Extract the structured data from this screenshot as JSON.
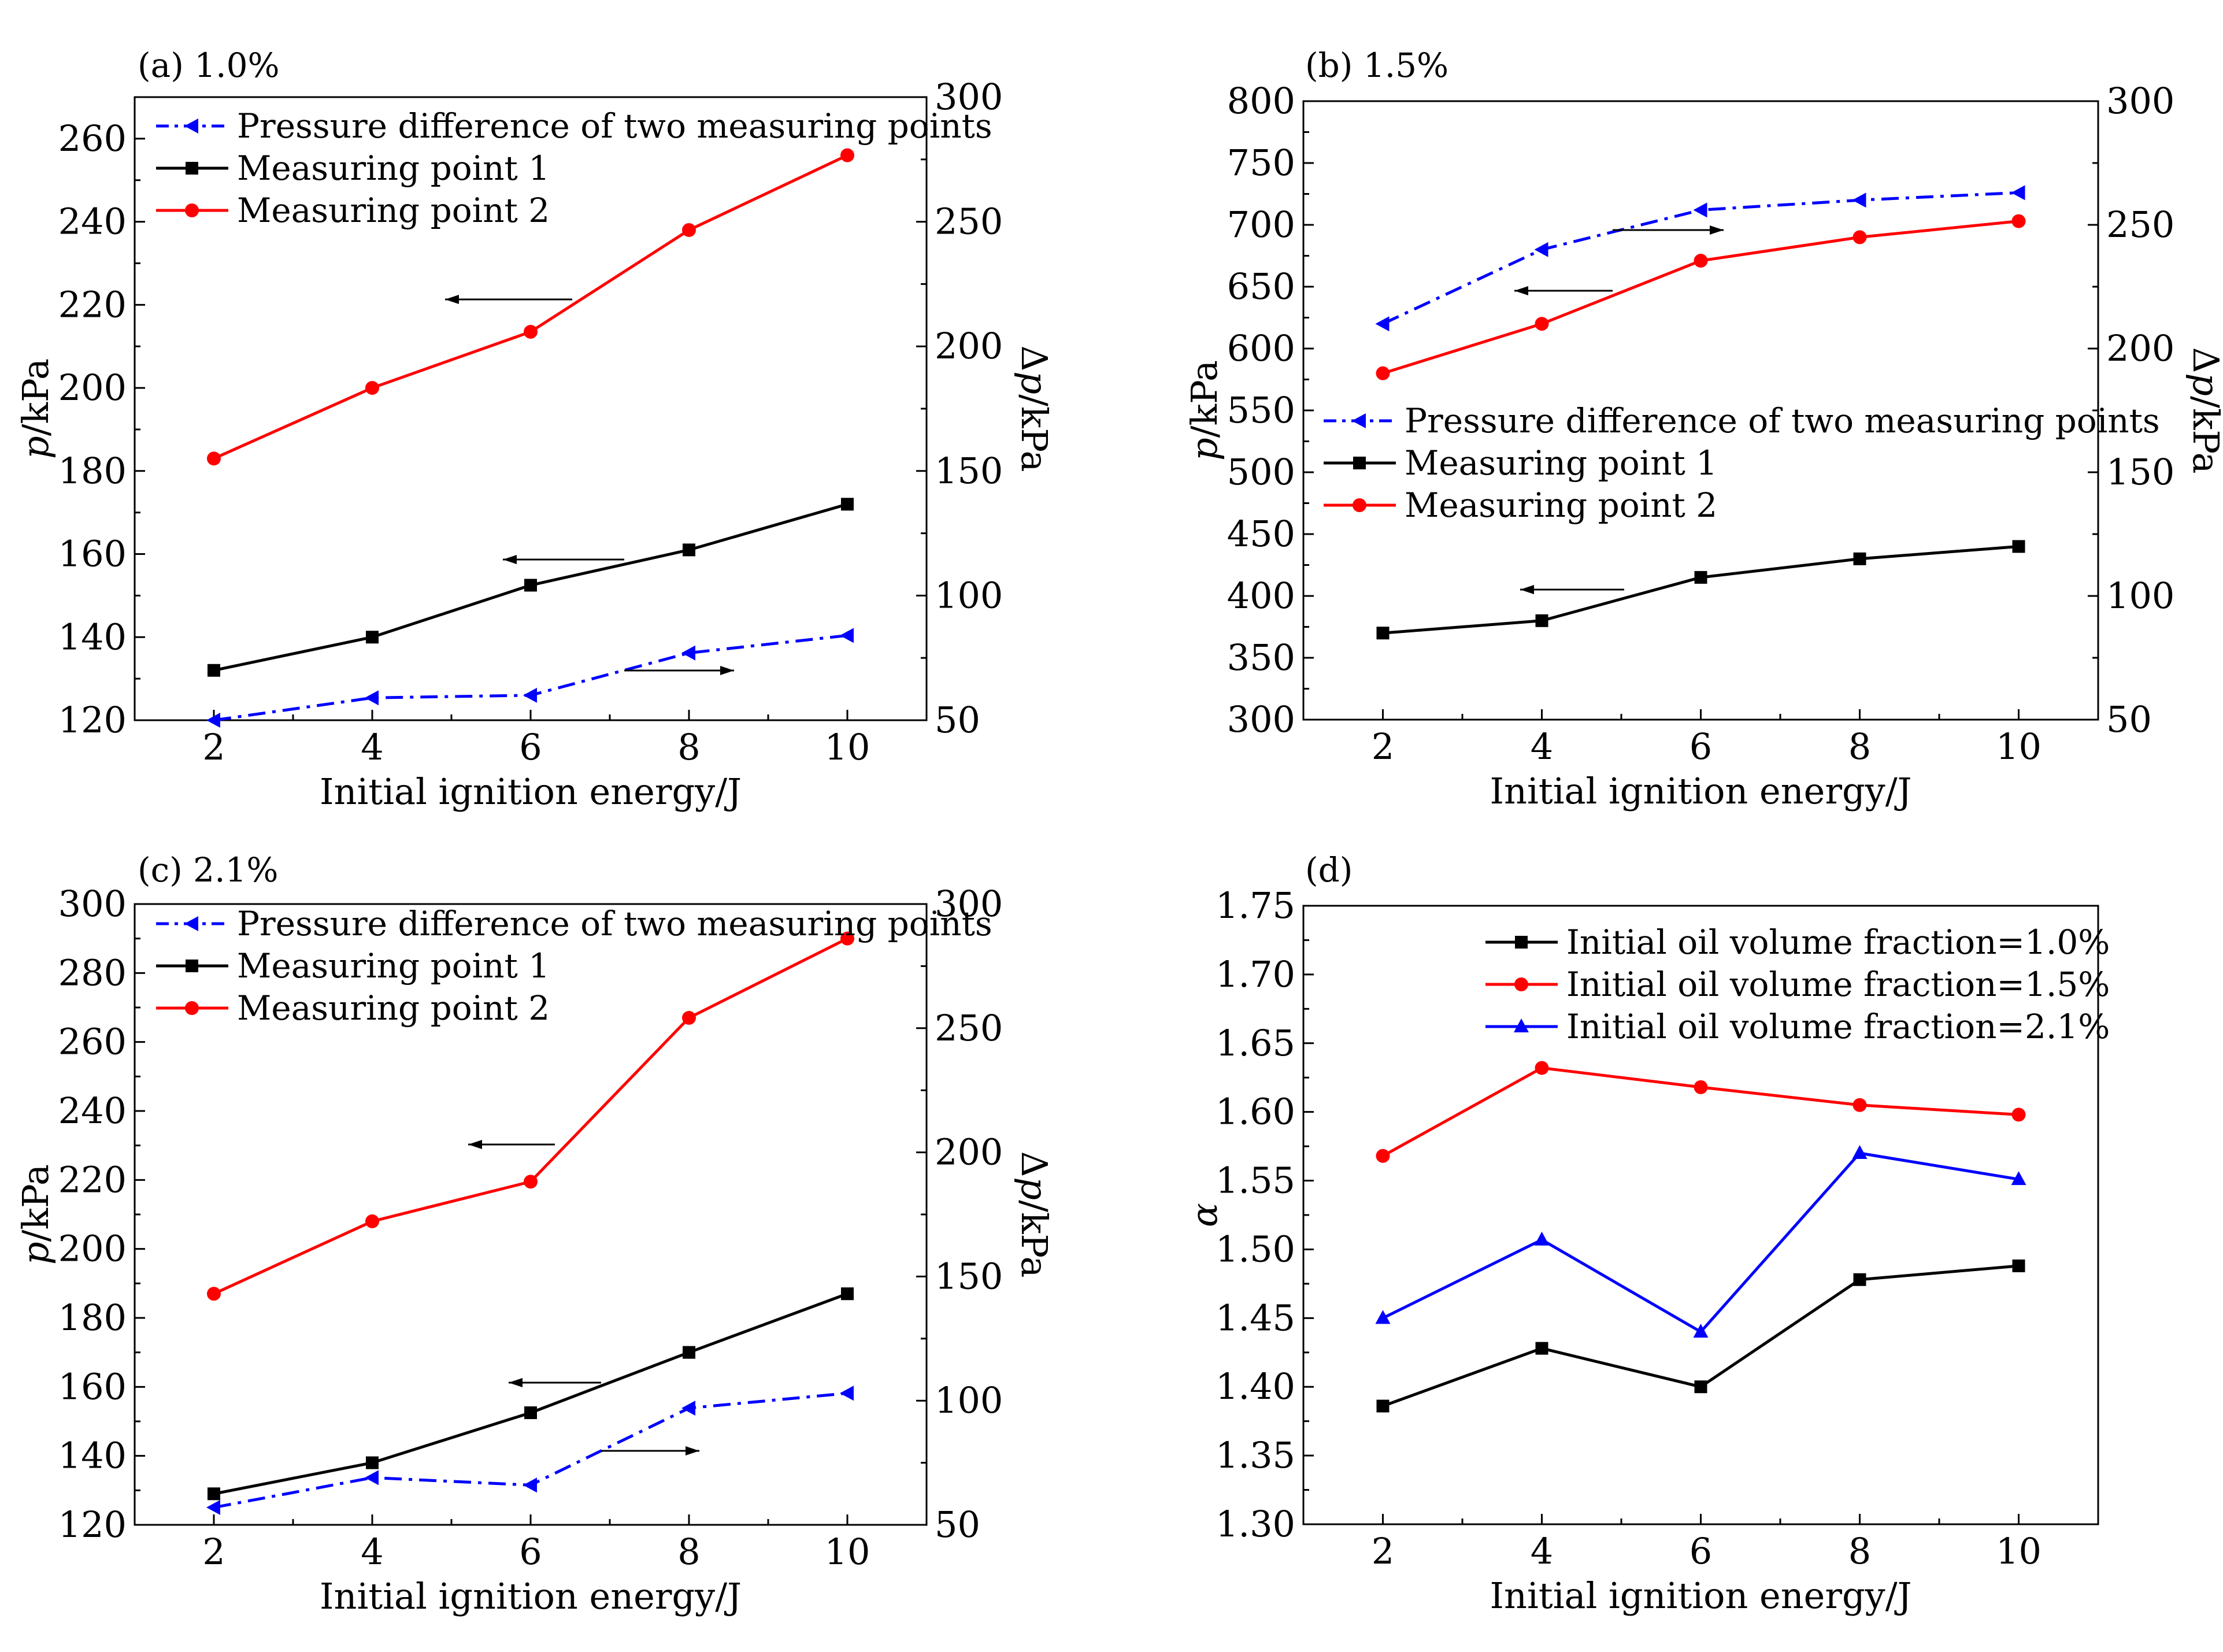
{
  "chart_data": [
    {
      "type": "line",
      "panel_label": "(a) 1.0%",
      "xlabel": "Initial ignition energy/J",
      "ylabel_main": "p",
      "ylabel_unit": "/kPa",
      "ylabel_right_prefix": "Δ",
      "ylabel_right_main": "p",
      "ylabel_right_unit": "/kPa",
      "x": [
        2,
        4,
        6,
        8,
        10
      ],
      "xlim": [
        1,
        11
      ],
      "xticks": [
        "2",
        "4",
        "6",
        "8",
        "10"
      ],
      "ylim": [
        120,
        270
      ],
      "yticks": [
        "120",
        "140",
        "160",
        "180",
        "200",
        "220",
        "240",
        "260"
      ],
      "ylim_right": [
        50,
        300
      ],
      "yticks_right": [
        "50",
        "100",
        "150",
        "200",
        "250",
        "300"
      ],
      "legend_position": "top-left",
      "series": [
        {
          "name": "Pressure difference of two measuring points",
          "axis": "right",
          "color": "#0000ff",
          "style": "dashdot",
          "marker": "triangle-left",
          "values": [
            50,
            59,
            60,
            77,
            84
          ]
        },
        {
          "name": "Measuring point 1",
          "axis": "left",
          "color": "#000000",
          "style": "solid",
          "marker": "square",
          "values": [
            132,
            140,
            152.5,
            161,
            172
          ]
        },
        {
          "name": "Measuring point 2",
          "axis": "left",
          "color": "#ff0000",
          "style": "solid",
          "marker": "circle",
          "values": [
            183,
            200,
            213.5,
            238,
            256
          ]
        }
      ]
    },
    {
      "type": "line",
      "panel_label": "(b) 1.5%",
      "xlabel": "Initial ignition energy/J",
      "ylabel_main": "p",
      "ylabel_unit": "/kPa",
      "ylabel_right_prefix": "Δ",
      "ylabel_right_main": "p",
      "ylabel_right_unit": "/kPa",
      "x": [
        2,
        4,
        6,
        8,
        10
      ],
      "xlim": [
        1,
        11
      ],
      "xticks": [
        "2",
        "4",
        "6",
        "8",
        "10"
      ],
      "ylim": [
        300,
        800
      ],
      "yticks": [
        "300",
        "350",
        "400",
        "450",
        "500",
        "550",
        "600",
        "650",
        "700",
        "750",
        "800"
      ],
      "ylim_right": [
        50,
        300
      ],
      "yticks_right": [
        "50",
        "100",
        "150",
        "200",
        "250",
        "300"
      ],
      "legend_position": "center-right",
      "series": [
        {
          "name": "Pressure difference of two measuring points",
          "axis": "right",
          "color": "#0000ff",
          "style": "dashdot",
          "marker": "triangle-left",
          "values": [
            210,
            240,
            256,
            260,
            263
          ]
        },
        {
          "name": "Measuring point 1",
          "axis": "left",
          "color": "#000000",
          "style": "solid",
          "marker": "square",
          "values": [
            370,
            380,
            415,
            430,
            440
          ]
        },
        {
          "name": "Measuring point 2",
          "axis": "left",
          "color": "#ff0000",
          "style": "solid",
          "marker": "circle",
          "values": [
            580,
            620,
            671,
            690,
            703
          ]
        }
      ]
    },
    {
      "type": "line",
      "panel_label": "(c) 2.1%",
      "xlabel": "Initial ignition energy/J",
      "ylabel_main": "p",
      "ylabel_unit": "/kPa",
      "ylabel_right_prefix": "Δ",
      "ylabel_right_main": "p",
      "ylabel_right_unit": "/kPa",
      "x": [
        2,
        4,
        6,
        8,
        10
      ],
      "xlim": [
        1,
        11
      ],
      "xticks": [
        "2",
        "4",
        "6",
        "8",
        "10"
      ],
      "ylim": [
        120,
        300
      ],
      "yticks": [
        "120",
        "140",
        "160",
        "180",
        "200",
        "220",
        "240",
        "260",
        "280",
        "300"
      ],
      "ylim_right": [
        50,
        300
      ],
      "yticks_right": [
        "50",
        "100",
        "150",
        "200",
        "250",
        "300"
      ],
      "legend_position": "top-left",
      "series": [
        {
          "name": "Pressure difference of two measuring points",
          "axis": "right",
          "color": "#0000ff",
          "style": "dashdot",
          "marker": "triangle-left",
          "values": [
            57,
            69,
            66,
            97,
            103
          ]
        },
        {
          "name": "Measuring point 1",
          "axis": "left",
          "color": "#000000",
          "style": "solid",
          "marker": "square",
          "values": [
            129,
            138,
            152.5,
            170,
            187
          ]
        },
        {
          "name": "Measuring point 2",
          "axis": "left",
          "color": "#ff0000",
          "style": "solid",
          "marker": "circle",
          "values": [
            187,
            208,
            219.5,
            267,
            290
          ]
        }
      ]
    },
    {
      "type": "line",
      "panel_label": "(d)",
      "xlabel": "Initial ignition energy/J",
      "ylabel_main": "α",
      "ylabel_unit": "",
      "x": [
        2,
        4,
        6,
        8,
        10
      ],
      "xlim": [
        1,
        11
      ],
      "xticks": [
        "2",
        "4",
        "6",
        "8",
        "10"
      ],
      "ylim": [
        1.3,
        1.75
      ],
      "yticks": [
        "1.30",
        "1.35",
        "1.40",
        "1.45",
        "1.50",
        "1.55",
        "1.60",
        "1.65",
        "1.70",
        "1.75"
      ],
      "legend_position": "top-right",
      "series": [
        {
          "name": "Initial oil volume fraction=1.0%",
          "axis": "left",
          "color": "#000000",
          "style": "solid",
          "marker": "square",
          "values": [
            1.386,
            1.428,
            1.4,
            1.478,
            1.488
          ]
        },
        {
          "name": "Initial oil volume fraction=1.5%",
          "axis": "left",
          "color": "#ff0000",
          "style": "solid",
          "marker": "circle",
          "values": [
            1.568,
            1.632,
            1.618,
            1.605,
            1.598
          ]
        },
        {
          "name": "Initial oil volume fraction=2.1%",
          "axis": "left",
          "color": "#0000ff",
          "style": "solid",
          "marker": "triangle-up",
          "values": [
            1.45,
            1.507,
            1.44,
            1.57,
            1.551
          ]
        }
      ]
    }
  ]
}
